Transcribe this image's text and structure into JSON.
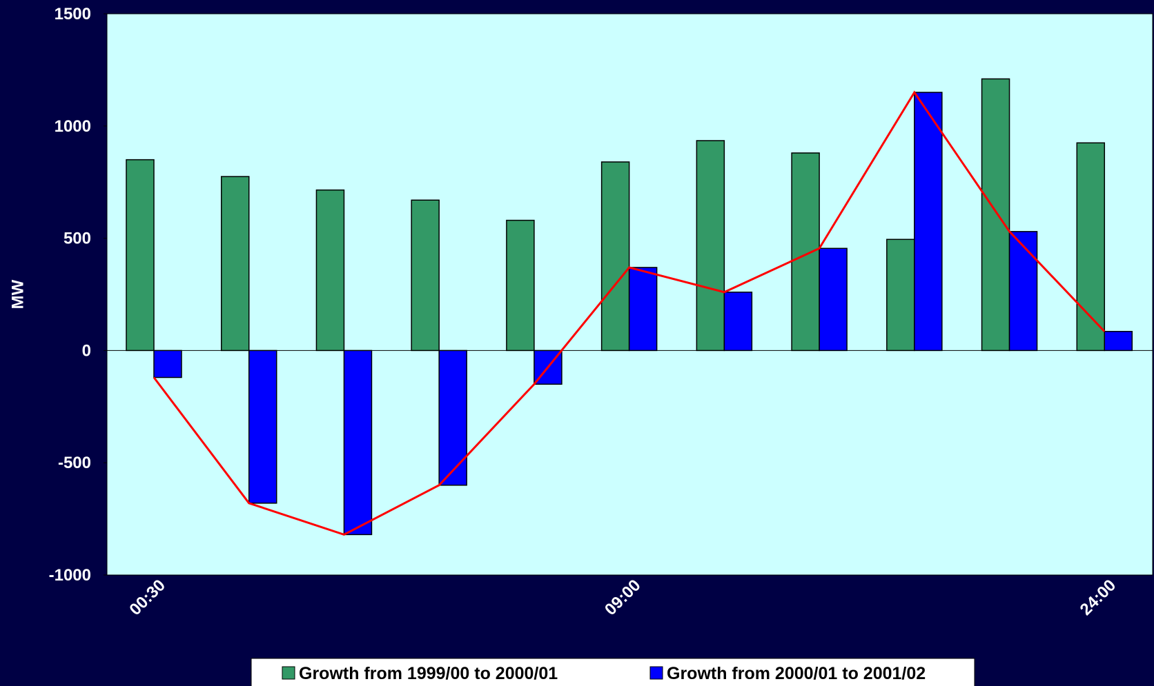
{
  "chart_data": {
    "type": "bar",
    "ylabel": "MW",
    "ylim": [
      -1000,
      1500
    ],
    "yticks": [
      "1500",
      "1000",
      "500",
      "0",
      "-500",
      "-1000"
    ],
    "ytick_values": [
      1500,
      1000,
      500,
      0,
      -500,
      -1000
    ],
    "x_tick_labels": [
      {
        "label": "00:30",
        "index": 0
      },
      {
        "label": "09:00",
        "index": 5
      },
      {
        "label": "24:00",
        "index": 10
      }
    ],
    "category_count": 11,
    "series": [
      {
        "name": "Growth from 1999/00 to 2000/01",
        "color": "#339966",
        "values": [
          850,
          775,
          715,
          670,
          580,
          840,
          935,
          880,
          495,
          1210,
          925
        ]
      },
      {
        "name": "Growth from 2000/01 to 2001/02",
        "color": "#0000ff",
        "values": [
          -120,
          -680,
          -820,
          -600,
          -150,
          370,
          260,
          455,
          1150,
          530,
          85
        ]
      }
    ],
    "line": {
      "color": "#ff0000",
      "follows": "Growth from 2000/01 to 2001/02"
    },
    "plot_background": "#ccffff",
    "page_background": "#000044",
    "legend_placement": "bottom"
  }
}
